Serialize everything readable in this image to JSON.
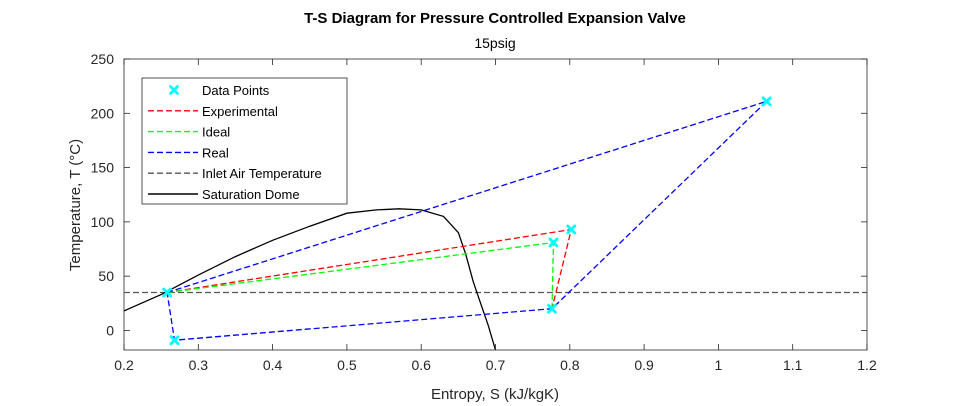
{
  "chart_data": {
    "type": "line",
    "title": "T-S Diagram for Pressure Controlled Expansion Valve",
    "subtitle": "15psig",
    "xlabel": "Entropy, S (kJ/kgK)",
    "ylabel": "Temperature, T (°C)",
    "xlim": [
      0.2,
      1.2
    ],
    "ylim": [
      -18,
      250
    ],
    "xticks": [
      0.2,
      0.3,
      0.4,
      0.5,
      0.6,
      0.7,
      0.8,
      0.9,
      1,
      1.1,
      1.2
    ],
    "xtick_labels": [
      "0.2",
      "0.3",
      "0.4",
      "0.5",
      "0.6",
      "0.7",
      "0.8",
      "0.9",
      "1",
      "1.1",
      "1.2"
    ],
    "yticks": [
      0,
      50,
      100,
      150,
      200,
      250
    ],
    "ytick_labels": [
      "0",
      "50",
      "100",
      "150",
      "200",
      "250"
    ],
    "grid": false,
    "legend_position": "top-left",
    "series": [
      {
        "name": "Data Points",
        "kind": "marker",
        "color": "#00ffff",
        "x": [
          0.258,
          0.268,
          0.776,
          0.778,
          0.802,
          1.065
        ],
        "y": [
          35,
          -9,
          20,
          81,
          93,
          211
        ]
      },
      {
        "name": "Experimental",
        "kind": "dashed",
        "color": "#ff0000",
        "x": [
          0.258,
          0.802,
          0.776
        ],
        "y": [
          35,
          93,
          20
        ]
      },
      {
        "name": "Ideal",
        "kind": "dashed",
        "color": "#00ff00",
        "x": [
          0.258,
          0.778,
          0.776
        ],
        "y": [
          35,
          81,
          20
        ]
      },
      {
        "name": "Real",
        "kind": "dashed",
        "color": "#0000ff",
        "x": [
          0.258,
          1.065,
          0.776,
          0.268,
          0.258
        ],
        "y": [
          35,
          211,
          20,
          -9,
          35
        ]
      },
      {
        "name": "Inlet Air Temperature",
        "kind": "dashed",
        "color": "#555555",
        "x": [
          0.2,
          1.2
        ],
        "y": [
          35,
          35
        ]
      },
      {
        "name": "Saturation Dome",
        "kind": "solid",
        "color": "#000000",
        "x": [
          0.2,
          0.25,
          0.3,
          0.35,
          0.4,
          0.45,
          0.5,
          0.54,
          0.57,
          0.6,
          0.63,
          0.65,
          0.66,
          0.67,
          0.68,
          0.69,
          0.7
        ],
        "y": [
          18,
          33,
          51,
          68,
          83,
          96,
          108,
          111,
          112,
          111,
          105,
          90,
          70,
          45,
          25,
          5,
          -18
        ]
      }
    ]
  }
}
